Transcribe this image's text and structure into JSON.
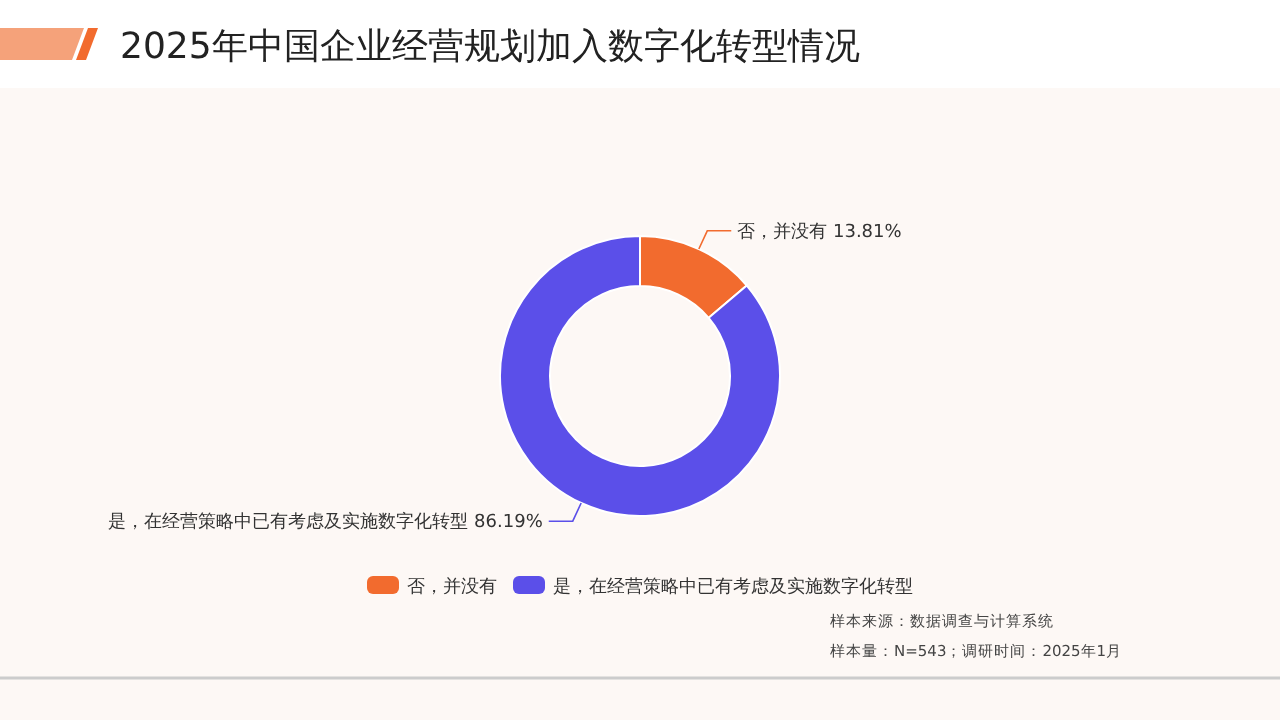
{
  "chart_data": {
    "type": "donut",
    "title": "2025年中国企业经营规划加入数字化转型情况",
    "categories": [
      "否，并没有",
      "是，在经营策略中已有考虑及实施数字化转型"
    ],
    "values": [
      13.81,
      86.19
    ],
    "value_labels": [
      "13.81%",
      "86.19%"
    ],
    "colors": [
      "#f26b2e",
      "#5b4fe9"
    ],
    "legend": "bottom",
    "annotations": [
      "样本来源：数据调查与计算系统",
      "样本量：N=543；调研时间：2025年1月"
    ]
  }
}
